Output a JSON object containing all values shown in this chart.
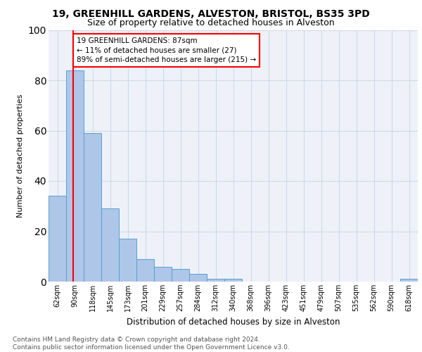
{
  "title1": "19, GREENHILL GARDENS, ALVESTON, BRISTOL, BS35 3PD",
  "title2": "Size of property relative to detached houses in Alveston",
  "xlabel": "Distribution of detached houses by size in Alveston",
  "ylabel": "Number of detached properties",
  "bar_labels": [
    "62sqm",
    "90sqm",
    "118sqm",
    "145sqm",
    "173sqm",
    "201sqm",
    "229sqm",
    "257sqm",
    "284sqm",
    "312sqm",
    "340sqm",
    "368sqm",
    "396sqm",
    "423sqm",
    "451sqm",
    "479sqm",
    "507sqm",
    "535sqm",
    "562sqm",
    "590sqm",
    "618sqm"
  ],
  "bar_values": [
    34,
    84,
    59,
    29,
    17,
    9,
    6,
    5,
    3,
    1,
    1,
    0,
    0,
    0,
    0,
    0,
    0,
    0,
    0,
    0,
    1
  ],
  "bar_color": "#aec6e8",
  "bar_edge_color": "#5a9fd4",
  "property_line_x": 0.89,
  "annotation_text": "19 GREENHILL GARDENS: 87sqm\n← 11% of detached houses are smaller (27)\n89% of semi-detached houses are larger (215) →",
  "annotation_box_color": "white",
  "annotation_box_edge_color": "red",
  "vline_color": "red",
  "grid_color": "#d0d8e8",
  "background_color": "#eef2f8",
  "ylim": [
    0,
    100
  ],
  "footer_text": "Contains HM Land Registry data © Crown copyright and database right 2024.\nContains public sector information licensed under the Open Government Licence v3.0.",
  "title1_fontsize": 10,
  "title2_fontsize": 9,
  "xlabel_fontsize": 8.5,
  "ylabel_fontsize": 8,
  "tick_fontsize": 7,
  "annotation_fontsize": 7.5,
  "footer_fontsize": 6.5
}
